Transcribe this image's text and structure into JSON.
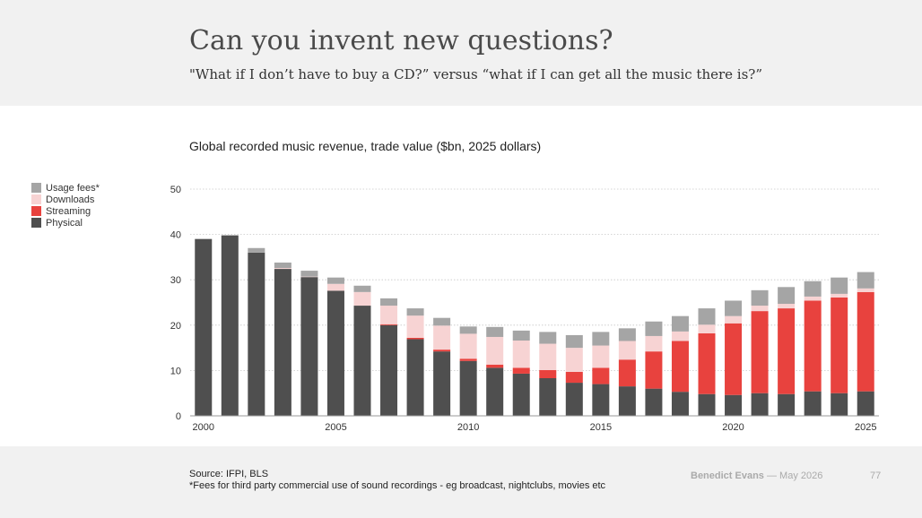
{
  "header": {
    "title": "Can you invent new questions?",
    "subtitle": "\"What if I don’t have to buy a CD?” versus “what if I can get all the music there is?”"
  },
  "legend": [
    {
      "label": "Usage fees*",
      "color": "#a5a5a5"
    },
    {
      "label": "Downloads",
      "color": "#f7d3d3"
    },
    {
      "label": "Streaming",
      "color": "#e8423e"
    },
    {
      "label": "Physical",
      "color": "#4f4f4f"
    }
  ],
  "chart_data": {
    "type": "bar",
    "stacked": true,
    "title": "Global recorded music revenue, trade value ($bn, 2025 dollars)",
    "ylim": [
      0,
      50
    ],
    "yticks": [
      0,
      10,
      20,
      30,
      40,
      50
    ],
    "x_tick_labels": [
      "2000",
      "2005",
      "2010",
      "2015",
      "2020",
      "2025"
    ],
    "grid": true,
    "legend_position": "left",
    "categories": [
      "2000",
      "2001",
      "2002",
      "2003",
      "2004",
      "2005",
      "2006",
      "2007",
      "2008",
      "2009",
      "2010",
      "2011",
      "2012",
      "2013",
      "2014",
      "2015",
      "2016",
      "2017",
      "2018",
      "2019",
      "2020",
      "2021",
      "2022",
      "2023",
      "2024",
      "2025"
    ],
    "series": [
      {
        "name": "Physical",
        "color": "#4f4f4f",
        "values": [
          39.0,
          39.8,
          36.0,
          32.4,
          30.6,
          27.6,
          24.3,
          20.0,
          16.9,
          14.2,
          12.1,
          10.6,
          9.3,
          8.3,
          7.3,
          7.0,
          6.5,
          6.0,
          5.3,
          4.8,
          4.6,
          5.0,
          4.8,
          5.4,
          5.0,
          5.4
        ]
      },
      {
        "name": "Streaming",
        "color": "#e8423e",
        "values": [
          0,
          0,
          0,
          0,
          0,
          0,
          0,
          0.2,
          0.3,
          0.4,
          0.5,
          0.7,
          1.3,
          1.8,
          2.4,
          3.6,
          5.9,
          8.2,
          11.2,
          13.4,
          15.8,
          18.1,
          18.9,
          20.0,
          21.1,
          21.9
        ]
      },
      {
        "name": "Downloads",
        "color": "#f7d3d3",
        "values": [
          0,
          0,
          0,
          0.2,
          0.1,
          1.5,
          3.0,
          4.1,
          4.9,
          5.3,
          5.5,
          6.1,
          6.0,
          5.8,
          5.3,
          4.9,
          4.1,
          3.4,
          2.1,
          1.9,
          1.6,
          1.2,
          1.0,
          0.9,
          0.8,
          0.8
        ]
      },
      {
        "name": "Usage fees*",
        "color": "#a5a5a5",
        "values": [
          0,
          0,
          1.0,
          1.2,
          1.3,
          1.4,
          1.4,
          1.6,
          1.6,
          1.7,
          1.6,
          2.2,
          2.2,
          2.6,
          2.8,
          3.0,
          2.8,
          3.2,
          3.4,
          3.6,
          3.4,
          3.4,
          3.7,
          3.4,
          3.6,
          3.6
        ]
      }
    ]
  },
  "footer": {
    "source": "Source: IFPI, BLS",
    "note": "*Fees for third party commercial use of sound recordings - eg broadcast, nightclubs, movies etc",
    "brand_name": "Benedict Evans",
    "brand_sep": "—",
    "date": "May 2026",
    "page": "77"
  }
}
